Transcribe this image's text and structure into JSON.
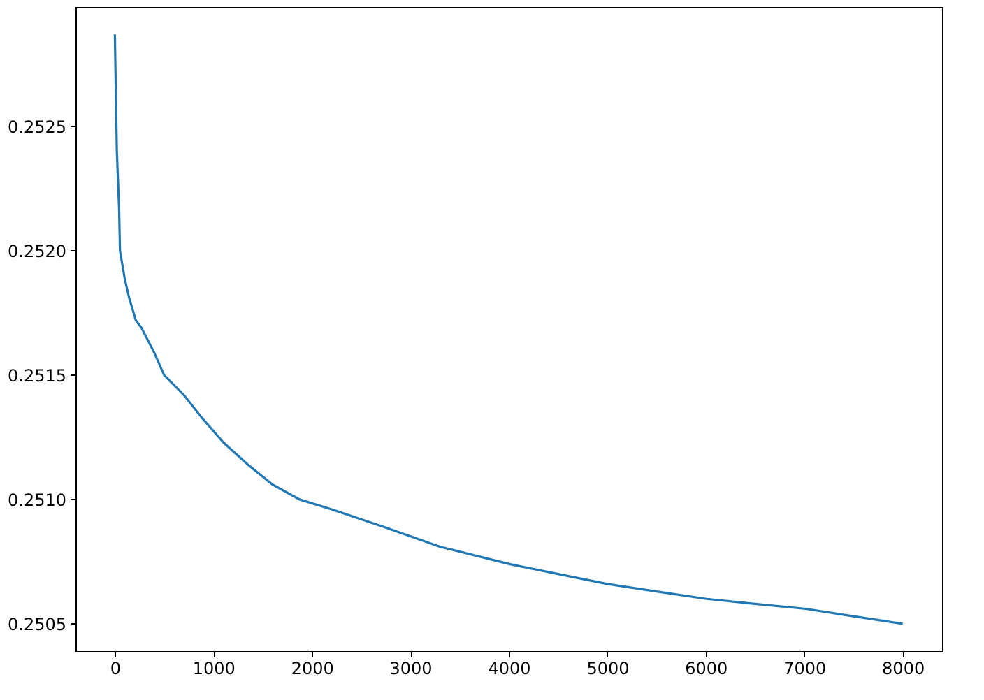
{
  "chart_data": {
    "type": "line",
    "x": [
      0,
      5,
      20,
      43,
      52,
      99,
      145,
      213,
      270,
      400,
      500,
      700,
      880,
      1100,
      1350,
      1600,
      1875,
      2200,
      2727,
      3300,
      4006,
      4500,
      5000,
      5500,
      6009,
      6500,
      7017,
      7500,
      8000
    ],
    "series": [
      {
        "color": "#1f77b4",
        "values": [
          0.25287,
          0.25275,
          0.2524,
          0.25217,
          0.252,
          0.25189,
          0.25181,
          0.25172,
          0.25169,
          0.25159,
          0.2515,
          0.25142,
          0.25133,
          0.25123,
          0.25114,
          0.25106,
          0.251,
          0.25096,
          0.25089,
          0.25081,
          0.25074,
          0.2507,
          0.25066,
          0.25063,
          0.2506,
          0.25058,
          0.25056,
          0.25053,
          0.2505
        ]
      }
    ],
    "xlim": [
      -400,
      8400
    ],
    "xticks": [
      0,
      1000,
      2000,
      3000,
      4000,
      5000,
      6000,
      7000,
      8000
    ],
    "ylim": [
      0.25039,
      0.25298
    ],
    "yticks": [
      {
        "value": 0.2505,
        "label": "0.2505"
      },
      {
        "value": 0.251,
        "label": "0.2510"
      },
      {
        "value": 0.2515,
        "label": "0.2515"
      },
      {
        "value": 0.252,
        "label": "0.2520"
      },
      {
        "value": 0.2525,
        "label": "0.2525"
      }
    ],
    "grid": false,
    "line_style": "solid"
  }
}
